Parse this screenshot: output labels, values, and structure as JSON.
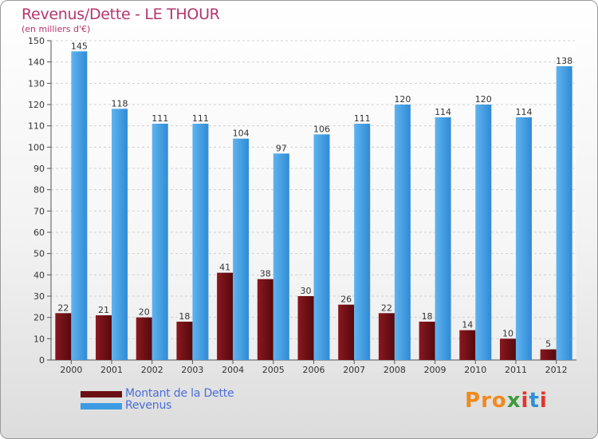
{
  "header": {
    "title": "Revenus/Dette - LE THOUR",
    "subtitle": "(en milliers d'€)"
  },
  "chart_data": {
    "type": "bar",
    "title": "Revenus/Dette - LE THOUR",
    "subtitle": "(en milliers d'€)",
    "categories": [
      "2000",
      "2001",
      "2002",
      "2003",
      "2004",
      "2005",
      "2006",
      "2007",
      "2008",
      "2009",
      "2010",
      "2011",
      "2012"
    ],
    "series": [
      {
        "name": "Montant de la Dette",
        "color": "#6b0f14",
        "values": [
          22,
          21,
          20,
          18,
          41,
          38,
          30,
          26,
          22,
          18,
          14,
          10,
          5
        ]
      },
      {
        "name": "Revenus",
        "color": "#3d9be3",
        "values": [
          145,
          118,
          111,
          111,
          104,
          97,
          106,
          111,
          120,
          114,
          120,
          114,
          138
        ]
      }
    ],
    "ylim": [
      0,
      150
    ],
    "yticks": [
      0,
      10,
      20,
      30,
      40,
      50,
      60,
      70,
      80,
      90,
      100,
      110,
      120,
      130,
      140,
      150
    ],
    "grid": true,
    "legend_position": "bottom-left"
  },
  "legend": {
    "items": [
      {
        "label": "Montant de la Dette",
        "color": "#6b0f14"
      },
      {
        "label": "Revenus",
        "color": "#3d9be3"
      }
    ]
  },
  "logo": {
    "letters": [
      {
        "ch": "P",
        "color": "#f08a1e"
      },
      {
        "ch": "r",
        "color": "#f08a1e"
      },
      {
        "ch": "o",
        "color": "#f08a1e"
      },
      {
        "ch": "x",
        "color": "#3f9a3c"
      },
      {
        "ch": "i",
        "color": "#e53527"
      },
      {
        "ch": "t",
        "color": "#2f8fd6"
      },
      {
        "ch": "i",
        "color": "#e53527"
      }
    ]
  }
}
